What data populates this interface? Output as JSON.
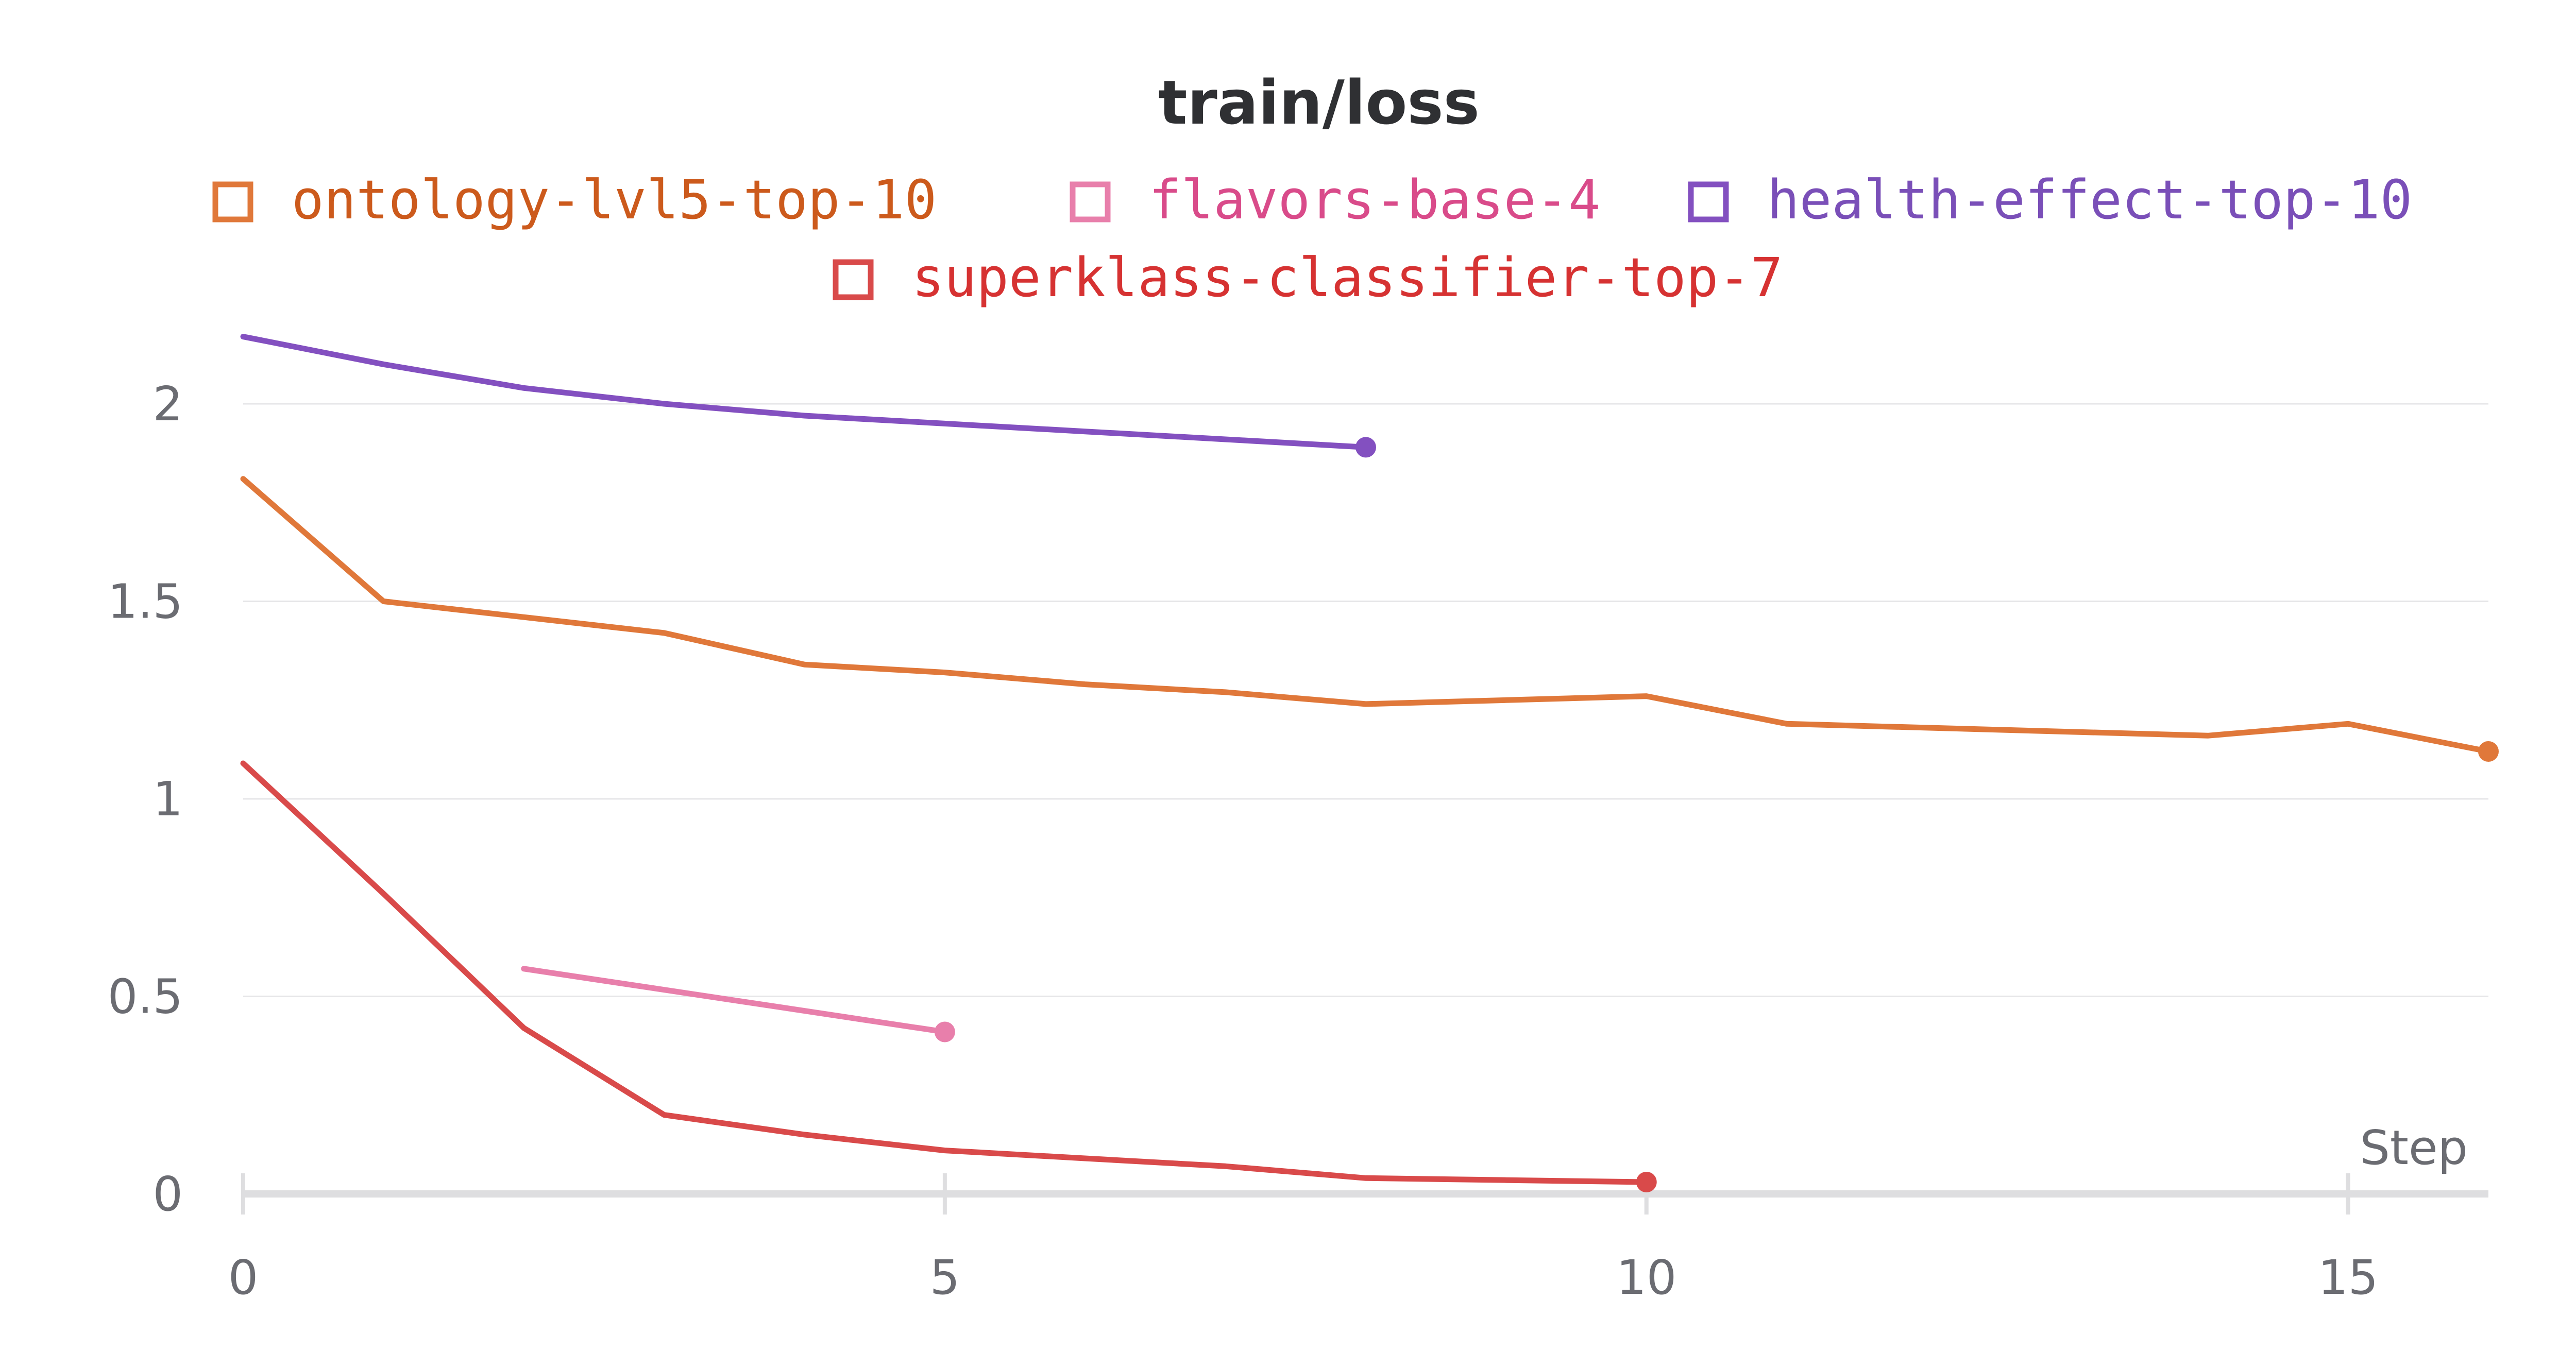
{
  "chart_data": {
    "type": "line",
    "title": "train/loss",
    "xlabel": "Step",
    "ylabel": "",
    "xlim": [
      0,
      16
    ],
    "ylim": [
      0,
      2.15
    ],
    "x_ticks": [
      "0",
      "5",
      "10",
      "15"
    ],
    "y_ticks": [
      "0",
      "0.5",
      "1",
      "1.5",
      "2"
    ],
    "grid": true,
    "legend_position": "top-center",
    "series": [
      {
        "name": "ontology-lvl5-top-10",
        "color": "#e0783a",
        "text_color": "#cc5a1c",
        "x": [
          0,
          1,
          2,
          3,
          4,
          5,
          6,
          7,
          8,
          9,
          10,
          11,
          12,
          13,
          14,
          15,
          16
        ],
        "y": [
          1.81,
          1.5,
          1.46,
          1.42,
          1.34,
          1.32,
          1.29,
          1.27,
          1.24,
          1.25,
          1.26,
          1.19,
          1.18,
          1.17,
          1.16,
          1.19,
          1.12
        ]
      },
      {
        "name": "flavors-base-4",
        "color": "#e87fab",
        "text_color": "#d94b8a",
        "x": [
          2,
          5
        ],
        "y": [
          0.57,
          0.41
        ]
      },
      {
        "name": "health-effect-top-10",
        "color": "#8350c0",
        "text_color": "#7a4fb8",
        "x": [
          0,
          1,
          2,
          3,
          4,
          5,
          6,
          7,
          8
        ],
        "y": [
          2.17,
          2.1,
          2.04,
          2.0,
          1.97,
          1.95,
          1.93,
          1.91,
          1.89
        ]
      },
      {
        "name": "superklass-classifier-top-7",
        "color": "#d94a4a",
        "text_color": "#d63232",
        "x": [
          0,
          1,
          2,
          3,
          4,
          5,
          6,
          7,
          8,
          9,
          10
        ],
        "y": [
          1.09,
          0.76,
          0.42,
          0.2,
          0.15,
          0.11,
          0.09,
          0.07,
          0.04,
          0.035,
          0.03
        ]
      }
    ]
  }
}
